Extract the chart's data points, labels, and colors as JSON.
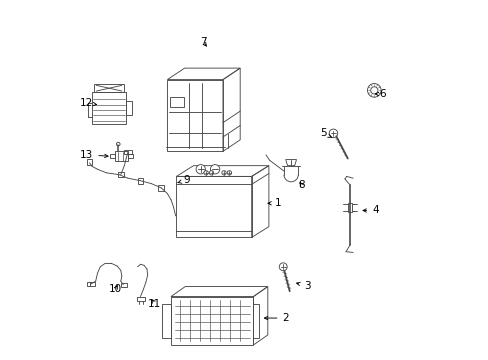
{
  "bg_color": "#ffffff",
  "line_color": "#4a4a4a",
  "text_color": "#000000",
  "label_fontsize": 7.5,
  "figsize": [
    4.89,
    3.6
  ],
  "dpi": 100,
  "label_positions": {
    "1": [
      0.595,
      0.435,
      0.555,
      0.435
    ],
    "2": [
      0.615,
      0.115,
      0.545,
      0.115
    ],
    "3": [
      0.675,
      0.205,
      0.635,
      0.215
    ],
    "4": [
      0.865,
      0.415,
      0.82,
      0.415
    ],
    "5": [
      0.72,
      0.63,
      0.745,
      0.618
    ],
    "6": [
      0.885,
      0.74,
      0.862,
      0.74
    ],
    "7": [
      0.385,
      0.885,
      0.4,
      0.865
    ],
    "8": [
      0.66,
      0.485,
      0.648,
      0.5
    ],
    "9": [
      0.34,
      0.5,
      0.305,
      0.49
    ],
    "10": [
      0.14,
      0.195,
      0.15,
      0.215
    ],
    "11": [
      0.25,
      0.155,
      0.235,
      0.175
    ],
    "12": [
      0.06,
      0.715,
      0.09,
      0.71
    ],
    "13": [
      0.06,
      0.57,
      0.13,
      0.566
    ]
  }
}
